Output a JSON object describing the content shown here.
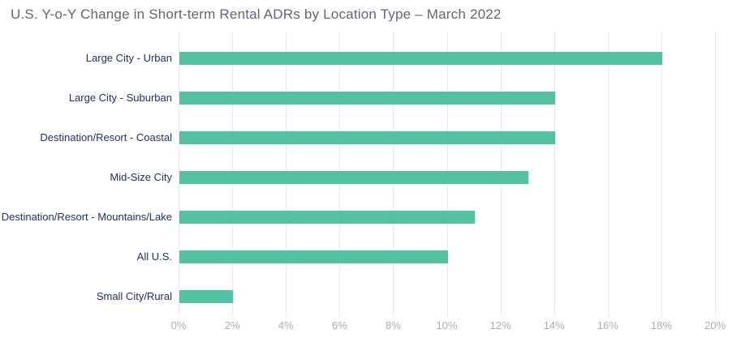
{
  "title": "U.S. Y-o-Y Change in Short-term Rental ADRs by Location Type – March 2022",
  "chart_data": {
    "type": "bar",
    "orientation": "horizontal",
    "title": "U.S. Y-o-Y Change in Short-term Rental ADRs by Location Type – March 2022",
    "categories": [
      "Large City - Urban",
      "Large City - Suburban",
      "Destination/Resort - Coastal",
      "Mid-Size City",
      "Destination/Resort - Mountains/Lake",
      "All U.S.",
      "Small City/Rural"
    ],
    "values": [
      18,
      14,
      14,
      13,
      11,
      10,
      2
    ],
    "unit": "%",
    "xlabel": "",
    "ylabel": "",
    "xlim": [
      0,
      20
    ],
    "x_tick_step": 2,
    "x_tick_labels": [
      "0%",
      "2%",
      "4%",
      "6%",
      "8%",
      "10%",
      "12%",
      "14%",
      "16%",
      "18%",
      "20%"
    ],
    "grid": "vertical-only",
    "legend": "none",
    "colors": {
      "bar": "#52c2a2",
      "category_label": "#20306b",
      "title": "#5f6678",
      "tick_label": "#a9aeb9",
      "gridline": "#e9e9ea",
      "background": "#ffffff"
    }
  }
}
